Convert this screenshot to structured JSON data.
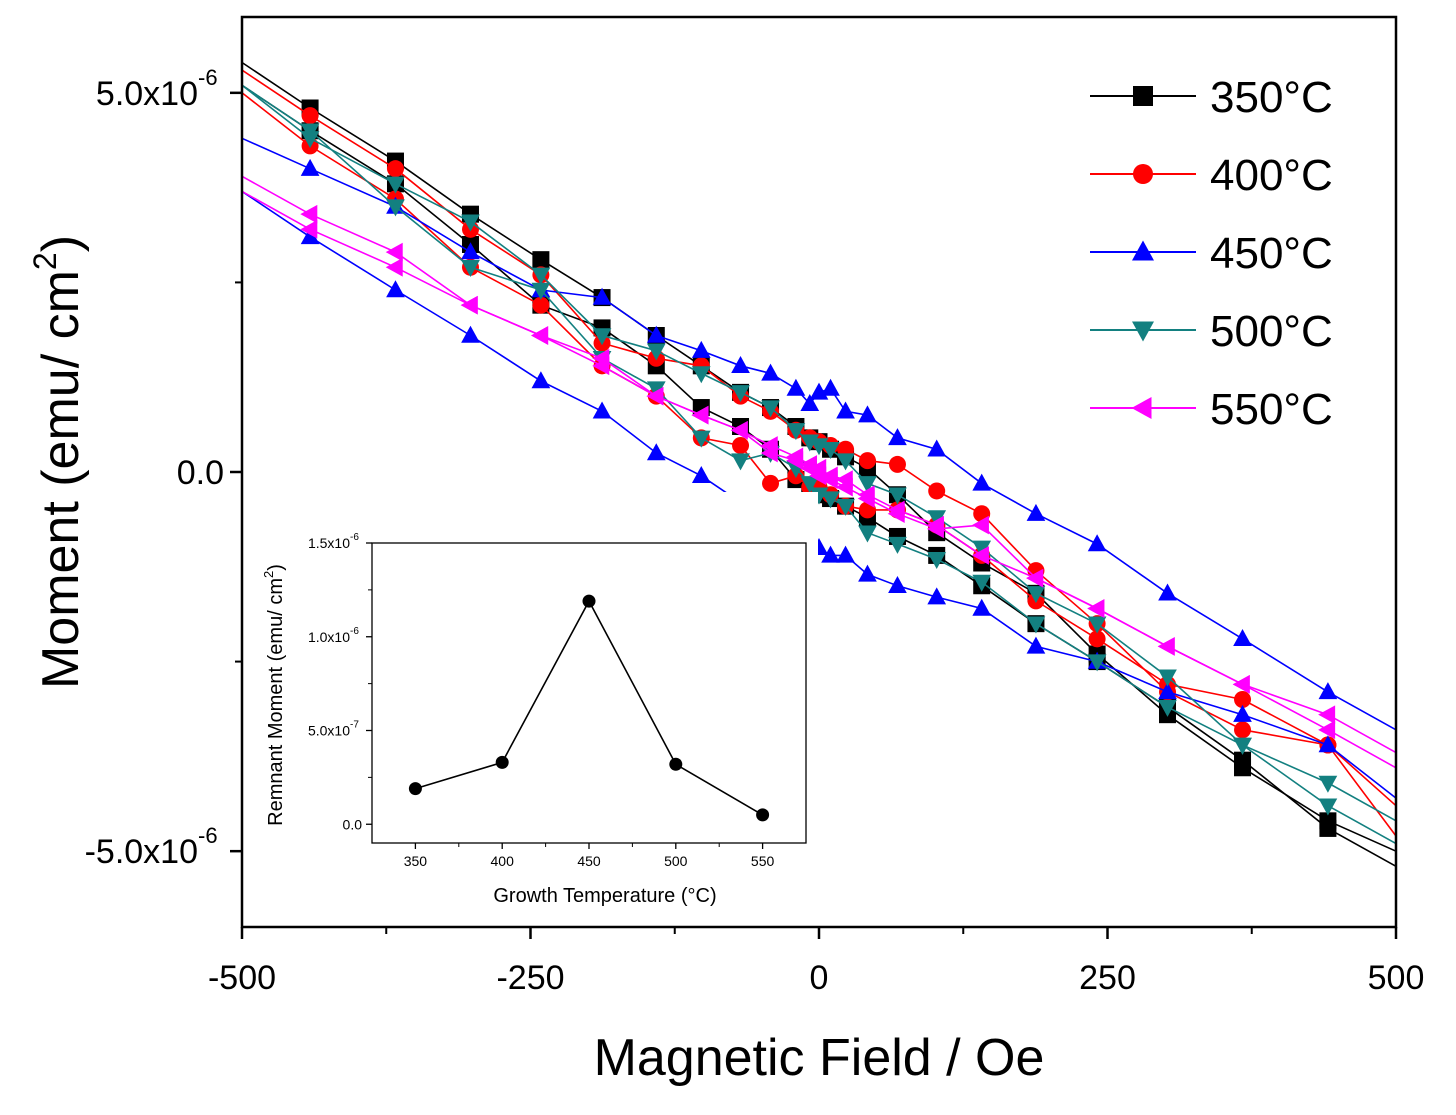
{
  "chart_data": [
    {
      "type": "line",
      "title": "",
      "xlabel": "Magnetic Field / Oe",
      "ylabel": "Moment (emu/ cm²)",
      "ylabel_base": "Moment (emu/ cm",
      "ylabel_sup": "2",
      "ylabel_end": ")",
      "xlim": [
        -500,
        500
      ],
      "ylim": [
        -6e-06,
        6e-06
      ],
      "x_ticks": [
        -500,
        -250,
        0,
        250,
        500
      ],
      "x_tick_labels": [
        "-500",
        "-250",
        "0",
        "250",
        "500"
      ],
      "y_ticks": [
        -5e-06,
        0,
        5e-06
      ],
      "y_tick_labels": [
        {
          "base": "-5.0x10",
          "exp": "-6"
        },
        {
          "base": "0.0",
          "exp": ""
        },
        {
          "base": "5.0x10",
          "exp": "-6"
        }
      ],
      "legend_position": "top-right",
      "series": [
        {
          "name": "350°C",
          "label_base": "350",
          "label_unit": "°C",
          "color": "#000000",
          "marker": "square",
          "descending": {
            "x": [
              -500,
              -441,
              -367,
              -302,
              -241,
              -188,
              -141,
              -102,
              -68,
              -42,
              -20,
              -8,
              0,
              10,
              23,
              42,
              68,
              102,
              141,
              188,
              241,
              302,
              367,
              441,
              500
            ],
            "y": [
              5.4e-06,
              4.8e-06,
              4.1e-06,
              3.4e-06,
              2.8e-06,
              2.3e-06,
              1.8e-06,
              1.4e-06,
              1.05e-06,
              8.5e-07,
              6e-07,
              4.5e-07,
              4e-07,
              3e-07,
              2e-07,
              5e-08,
              -3e-07,
              -8e-07,
              -1.2e-06,
              -1.6e-06,
              -2.4e-06,
              -3.2e-06,
              -3.9e-06,
              -4.6e-06,
              -5e-06
            ]
          },
          "ascending": {
            "x": [
              500,
              441,
              367,
              302,
              241,
              188,
              141,
              102,
              68,
              42,
              23,
              10,
              0,
              -8,
              -20,
              -42,
              -68,
              -102,
              -141,
              -188,
              -241,
              -302,
              -367,
              -441,
              -500
            ],
            "y": [
              -5.2e-06,
              -4.7e-06,
              -3.8e-06,
              -3.1e-06,
              -2.5e-06,
              -2e-06,
              -1.5e-06,
              -1.1e-06,
              -8.5e-07,
              -6e-07,
              -4.5e-07,
              -3.5e-07,
              -3e-07,
              -2.5e-07,
              -1e-07,
              3e-07,
              6e-07,
              8.5e-07,
              1.4e-06,
              1.9e-06,
              2.2e-06,
              3e-06,
              3.8e-06,
              4.5e-06,
              5.1e-06
            ]
          }
        },
        {
          "name": "400°C",
          "label_base": "400",
          "label_unit": "°C",
          "color": "#ff0000",
          "marker": "circle",
          "descending": {
            "x": [
              -500,
              -441,
              -367,
              -302,
              -241,
              -188,
              -141,
              -102,
              -68,
              -42,
              -20,
              -8,
              0,
              10,
              23,
              42,
              68,
              102,
              141,
              188,
              241,
              302,
              367,
              441,
              500
            ],
            "y": [
              5.3e-06,
              4.7e-06,
              4e-06,
              3.2e-06,
              2.6e-06,
              1.7e-06,
              1.5e-06,
              1.4e-06,
              1e-06,
              8e-07,
              5.5e-07,
              4.5e-07,
              4e-07,
              3.5e-07,
              3e-07,
              1.5e-07,
              1e-07,
              -2.5e-07,
              -5.5e-07,
              -1.3e-06,
              -2e-06,
              -2.9e-06,
              -3.4e-06,
              -3.6e-06,
              -4.4e-06
            ]
          },
          "ascending": {
            "x": [
              500,
              441,
              367,
              302,
              241,
              188,
              141,
              102,
              68,
              42,
              23,
              10,
              0,
              -8,
              -20,
              -42,
              -68,
              -102,
              -141,
              -188,
              -241,
              -302,
              -367,
              -441,
              -500
            ],
            "y": [
              -4.8e-06,
              -3.6e-06,
              -3e-06,
              -2.8e-06,
              -2.2e-06,
              -1.7e-06,
              -1.1e-06,
              -7e-07,
              -5e-07,
              -5e-07,
              -4.5e-07,
              -3e-07,
              -2e-07,
              -2e-07,
              -5e-08,
              -1.5e-07,
              3.5e-07,
              4.5e-07,
              1e-06,
              1.4e-06,
              2.2e-06,
              2.7e-06,
              3.6e-06,
              4.3e-06,
              5e-06
            ]
          }
        },
        {
          "name": "450°C",
          "label_base": "450",
          "label_unit": "°C",
          "color": "#0000ff",
          "marker": "triangle-up",
          "descending": {
            "x": [
              -500,
              -441,
              -367,
              -302,
              -241,
              -188,
              -141,
              -102,
              -68,
              -42,
              -20,
              -8,
              0,
              10,
              23,
              42,
              68,
              102,
              141,
              188,
              241,
              302,
              367,
              441,
              500
            ],
            "y": [
              4.4e-06,
              4e-06,
              3.5e-06,
              2.9e-06,
              2.4e-06,
              2.3e-06,
              1.8e-06,
              1.6e-06,
              1.4e-06,
              1.3e-06,
              1.1e-06,
              9e-07,
              1.05e-06,
              1.1e-06,
              8e-07,
              7.5e-07,
              4.5e-07,
              3e-07,
              -1.5e-07,
              -5.5e-07,
              -9.5e-07,
              -1.6e-06,
              -2.2e-06,
              -2.9e-06,
              -3.4e-06
            ]
          },
          "ascending": {
            "x": [
              500,
              441,
              367,
              302,
              241,
              188,
              141,
              102,
              68,
              42,
              23,
              10,
              0,
              -8,
              -20,
              -42,
              -68,
              -102,
              -141,
              -188,
              -241,
              -302,
              -367,
              -441,
              -500
            ],
            "y": [
              -4.3e-06,
              -3.6e-06,
              -3.2e-06,
              -2.9e-06,
              -2.5e-06,
              -2.3e-06,
              -1.8e-06,
              -1.65e-06,
              -1.5e-06,
              -1.35e-06,
              -1.1e-06,
              -1.1e-06,
              -1e-06,
              -8.5e-07,
              -8e-07,
              -4e-07,
              -4e-07,
              -5e-08,
              2.5e-07,
              8e-07,
              1.2e-06,
              1.8e-06,
              2.4e-06,
              3.1e-06,
              3.7e-06
            ]
          }
        },
        {
          "name": "500°C",
          "label_base": "500",
          "label_unit": "°C",
          "color": "#138080",
          "marker": "triangle-down",
          "descending": {
            "x": [
              -500,
              -441,
              -367,
              -302,
              -241,
              -188,
              -141,
              -102,
              -68,
              -42,
              -20,
              -8,
              0,
              10,
              23,
              42,
              68,
              102,
              141,
              188,
              241,
              302,
              367,
              441,
              500
            ],
            "y": [
              5.1e-06,
              4.4e-06,
              3.8e-06,
              3.3e-06,
              2.6e-06,
              1.8e-06,
              1.6e-06,
              1.3e-06,
              1.05e-06,
              8.5e-07,
              5.5e-07,
              4e-07,
              3.5e-07,
              3e-07,
              1.5e-07,
              -1.5e-07,
              -3e-07,
              -6e-07,
              -1e-06,
              -1.6e-06,
              -2e-06,
              -2.7e-06,
              -3.6e-06,
              -4.1e-06,
              -4.6e-06
            ]
          },
          "ascending": {
            "x": [
              500,
              441,
              367,
              302,
              241,
              188,
              141,
              102,
              68,
              42,
              23,
              10,
              0,
              -8,
              -20,
              -42,
              -68,
              -102,
              -141,
              -188,
              -241,
              -302,
              -367,
              -441,
              -500
            ],
            "y": [
              -4.9e-06,
              -4.4e-06,
              -3.6e-06,
              -3.1e-06,
              -2.5e-06,
              -2e-06,
              -1.45e-06,
              -1.15e-06,
              -9.5e-07,
              -8e-07,
              -4.5e-07,
              -3.5e-07,
              -3e-07,
              -1.5e-07,
              5e-08,
              2.5e-07,
              1.5e-07,
              4.5e-07,
              1.1e-06,
              1.5e-06,
              2.4e-06,
              2.7e-06,
              3.5e-06,
              4.5e-06,
              5.1e-06
            ]
          }
        },
        {
          "name": "550°C",
          "label_base": "550",
          "label_unit": "°C",
          "color": "#ff00ff",
          "marker": "triangle-left",
          "descending": {
            "x": [
              -500,
              -441,
              -367,
              -302,
              -241,
              -188,
              -141,
              -102,
              -68,
              -42,
              -20,
              -8,
              0,
              10,
              23,
              42,
              68,
              102,
              141,
              188,
              241,
              302,
              367,
              441,
              500
            ],
            "y": [
              3.9e-06,
              3.4e-06,
              2.9e-06,
              2.2e-06,
              1.8e-06,
              1.4e-06,
              1e-06,
              7.5e-07,
              5.5e-07,
              3.5e-07,
              2e-07,
              1e-07,
              5e-08,
              -5e-08,
              -1e-07,
              -3e-07,
              -5e-07,
              -7e-07,
              -1.1e-06,
              -1.4e-06,
              -1.8e-06,
              -2.3e-06,
              -2.8e-06,
              -3.4e-06,
              -3.9e-06
            ]
          },
          "ascending": {
            "x": [
              500,
              441,
              367,
              302,
              241,
              188,
              141,
              102,
              68,
              42,
              23,
              10,
              0,
              -8,
              -20,
              -42,
              -68,
              -102,
              -141,
              -188,
              -241,
              -302,
              -367,
              -441,
              -500
            ],
            "y": [
              -3.7e-06,
              -3.2e-06,
              -2.8e-06,
              -2.3e-06,
              -1.8e-06,
              -1.4e-06,
              -7e-07,
              -7.5e-07,
              -5.5e-07,
              -3.5e-07,
              -2e-07,
              -1e-07,
              -5e-08,
              5e-08,
              1.5e-07,
              2.5e-07,
              5.5e-07,
              7.5e-07,
              1e-06,
              1.5e-06,
              1.8e-06,
              2.2e-06,
              2.7e-06,
              3.2e-06,
              3.7e-06
            ]
          }
        }
      ]
    },
    {
      "type": "line",
      "title": "",
      "xlabel": "Growth Temperature (°C)",
      "ylabel": "Remnant Moment (emu/ cm²)",
      "ylabel_base": "Remnant Moment (emu/ cm",
      "ylabel_sup": "2",
      "ylabel_end": ")",
      "xlim": [
        325,
        575
      ],
      "ylim": [
        -1e-07,
        1.5e-06
      ],
      "x_ticks": [
        350,
        400,
        450,
        500,
        550
      ],
      "x_tick_labels": [
        "350",
        "400",
        "450",
        "500",
        "550"
      ],
      "y_ticks": [
        0,
        5e-07,
        1e-06,
        1.5e-06
      ],
      "y_tick_labels": [
        {
          "base": "0.0",
          "exp": ""
        },
        {
          "base": "5.0x10",
          "exp": "-7"
        },
        {
          "base": "1.0x10",
          "exp": "-6"
        },
        {
          "base": "1.5x10",
          "exp": "-6"
        }
      ],
      "series": [
        {
          "name": "Remnant Moment",
          "color": "#000000",
          "marker": "circle",
          "x": [
            350,
            400,
            450,
            500,
            550
          ],
          "y": [
            1.9e-07,
            3.3e-07,
            1.19e-06,
            3.2e-07,
            5e-08
          ]
        }
      ]
    }
  ]
}
